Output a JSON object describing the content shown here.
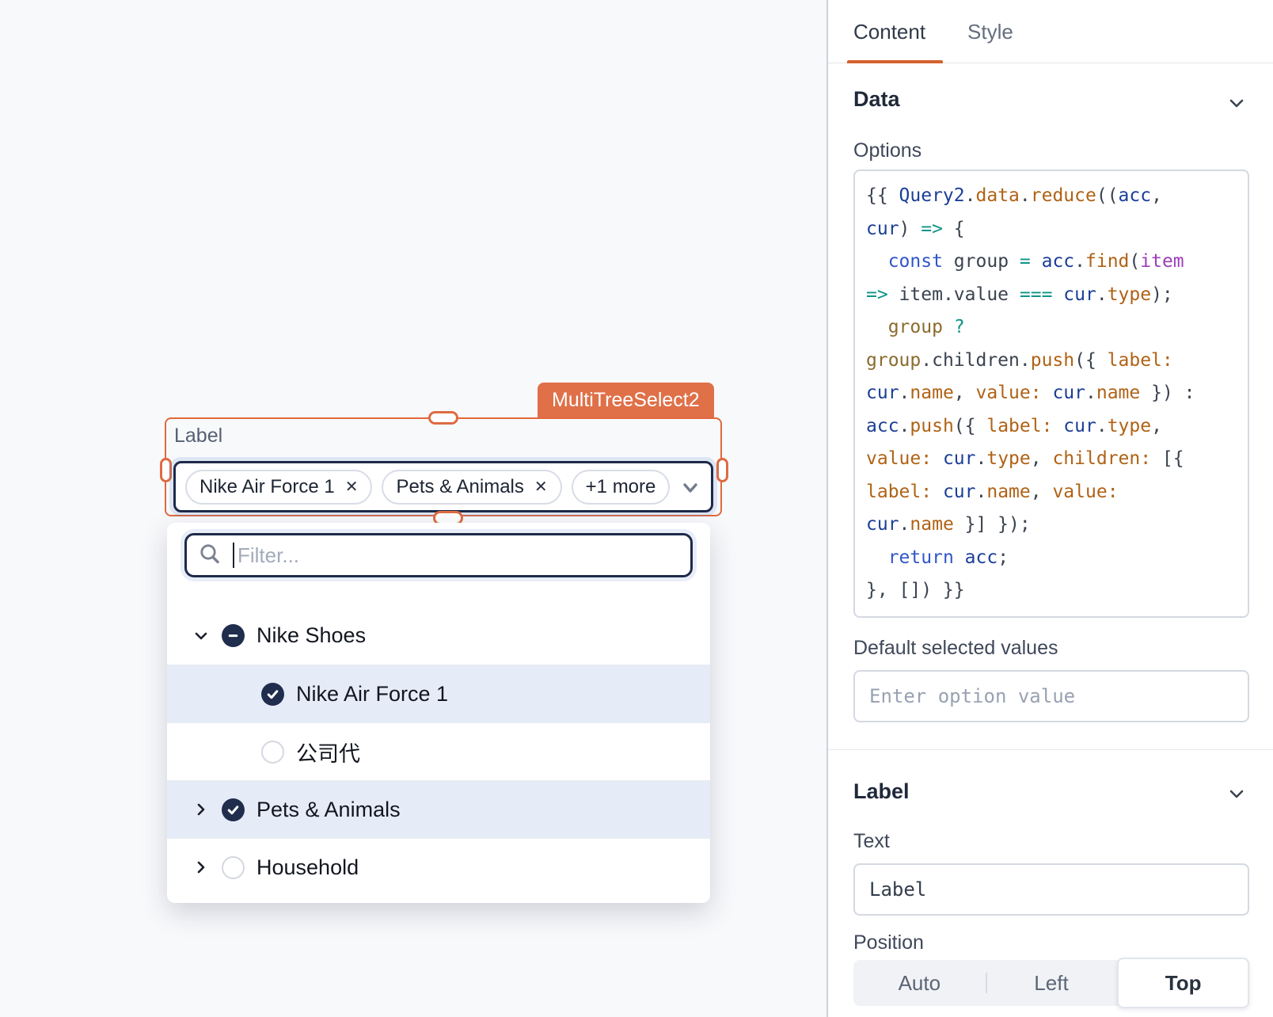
{
  "canvas": {
    "component_badge": "MultiTreeSelect2",
    "select": {
      "label": "Label",
      "tags": [
        {
          "text": "Nike Air Force 1",
          "removable": true
        },
        {
          "text": "Pets & Animals",
          "removable": true
        },
        {
          "text": "+1 more",
          "removable": false
        }
      ]
    },
    "dropdown": {
      "filter_placeholder": "Filter...",
      "items": [
        {
          "label": "Nike Shoes",
          "level": 0,
          "expander": "down",
          "state": "indeterminate",
          "highlight": false
        },
        {
          "label": "Nike Air Force 1",
          "level": 1,
          "expander": "none",
          "state": "checked",
          "highlight": true
        },
        {
          "label": "公司代",
          "level": 1,
          "expander": "none",
          "state": "unchecked",
          "highlight": false
        },
        {
          "label": "Pets & Animals",
          "level": 0,
          "expander": "right",
          "state": "checked",
          "highlight": true
        },
        {
          "label": "Household",
          "level": 0,
          "expander": "right",
          "state": "unchecked",
          "highlight": false
        }
      ]
    }
  },
  "inspector": {
    "tabs": [
      {
        "label": "Content",
        "active": true
      },
      {
        "label": "Style",
        "active": false
      }
    ],
    "data_section_title": "Data",
    "options_label": "Options",
    "code_lines": [
      [
        [
          "plain",
          "{{ "
        ],
        [
          "id",
          "Query2"
        ],
        [
          "plain",
          "."
        ],
        [
          "prop",
          "data"
        ],
        [
          "plain",
          "."
        ],
        [
          "prop",
          "reduce"
        ],
        [
          "plain",
          "(("
        ],
        [
          "id",
          "acc"
        ],
        [
          "plain",
          ","
        ]
      ],
      [
        [
          "id",
          "cur"
        ],
        [
          "plain",
          ") "
        ],
        [
          "op",
          "=>"
        ],
        [
          "plain",
          " {"
        ]
      ],
      [
        [
          "plain",
          "  "
        ],
        [
          "kw",
          "const"
        ],
        [
          "plain",
          " group "
        ],
        [
          "op",
          "="
        ],
        [
          "plain",
          " "
        ],
        [
          "id",
          "acc"
        ],
        [
          "plain",
          "."
        ],
        [
          "prop",
          "find"
        ],
        [
          "plain",
          "("
        ],
        [
          "param",
          "item"
        ]
      ],
      [
        [
          "op",
          "=>"
        ],
        [
          "plain",
          " item.value "
        ],
        [
          "op",
          "==="
        ],
        [
          "plain",
          " "
        ],
        [
          "id",
          "cur"
        ],
        [
          "plain",
          "."
        ],
        [
          "prop",
          "type"
        ],
        [
          "plain",
          ");"
        ]
      ],
      [
        [
          "plain",
          "  "
        ],
        [
          "var",
          "group"
        ],
        [
          "plain",
          " "
        ],
        [
          "op",
          "?"
        ]
      ],
      [
        [
          "var",
          "group"
        ],
        [
          "plain",
          ".children."
        ],
        [
          "prop",
          "push"
        ],
        [
          "plain",
          "({ "
        ],
        [
          "prop",
          "label:"
        ]
      ],
      [
        [
          "id",
          "cur"
        ],
        [
          "plain",
          "."
        ],
        [
          "prop",
          "name"
        ],
        [
          "plain",
          ", "
        ],
        [
          "prop",
          "value:"
        ],
        [
          "plain",
          " "
        ],
        [
          "id",
          "cur"
        ],
        [
          "plain",
          "."
        ],
        [
          "prop",
          "name"
        ],
        [
          "plain",
          " }) :"
        ]
      ],
      [
        [
          "id",
          "acc"
        ],
        [
          "plain",
          "."
        ],
        [
          "prop",
          "push"
        ],
        [
          "plain",
          "({ "
        ],
        [
          "prop",
          "label:"
        ],
        [
          "plain",
          " "
        ],
        [
          "id",
          "cur"
        ],
        [
          "plain",
          "."
        ],
        [
          "prop",
          "type"
        ],
        [
          "plain",
          ","
        ]
      ],
      [
        [
          "prop",
          "value:"
        ],
        [
          "plain",
          " "
        ],
        [
          "id",
          "cur"
        ],
        [
          "plain",
          "."
        ],
        [
          "prop",
          "type"
        ],
        [
          "plain",
          ", "
        ],
        [
          "prop",
          "children:"
        ],
        [
          "plain",
          " [{"
        ]
      ],
      [
        [
          "prop",
          "label:"
        ],
        [
          "plain",
          " "
        ],
        [
          "id",
          "cur"
        ],
        [
          "plain",
          "."
        ],
        [
          "prop",
          "name"
        ],
        [
          "plain",
          ", "
        ],
        [
          "prop",
          "value:"
        ]
      ],
      [
        [
          "id",
          "cur"
        ],
        [
          "plain",
          "."
        ],
        [
          "prop",
          "name"
        ],
        [
          "plain",
          " }] });"
        ]
      ],
      [
        [
          "plain",
          "  "
        ],
        [
          "kw",
          "return"
        ],
        [
          "plain",
          " "
        ],
        [
          "id",
          "acc"
        ],
        [
          "plain",
          ";"
        ]
      ],
      [
        [
          "plain",
          "}, []) }}"
        ]
      ]
    ],
    "default_selected_label": "Default selected values",
    "default_selected_placeholder": "Enter option value",
    "label_section_title": "Label",
    "text_label": "Text",
    "text_value": "Label",
    "position_label": "Position",
    "position_options": [
      {
        "label": "Auto",
        "active": false
      },
      {
        "label": "Left",
        "active": false
      },
      {
        "label": "Top",
        "active": true
      }
    ]
  },
  "colors": {
    "accent_orange": "#df7048",
    "tab_underline": "#d4622d",
    "focus_border_navy": "#1e2a4a",
    "checkbox_navy": "#202d4d",
    "row_highlight": "#e5ecf8",
    "canvas_bg": "#f8f9fb",
    "code_keyword": "#3056c8",
    "code_identifier": "#1b3e96",
    "code_property": "#b06215",
    "code_operator": "#0d9488",
    "code_param": "#9d3fb8",
    "code_variable": "#8a6b2d"
  }
}
